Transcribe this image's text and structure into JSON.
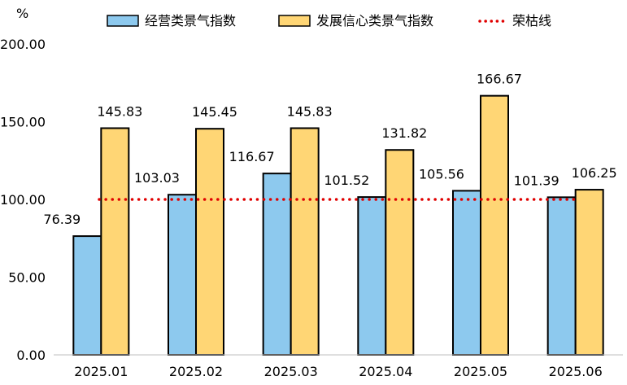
{
  "chart_data": {
    "type": "bar",
    "y_unit": "%",
    "categories": [
      "2025.01",
      "2025.02",
      "2025.03",
      "2025.04",
      "2025.05",
      "2025.06"
    ],
    "series": [
      {
        "name": "经营类景气指数",
        "values": [
          76.39,
          103.03,
          116.67,
          101.52,
          105.56,
          101.39
        ],
        "color": "#8DC9EE",
        "edge": "#000000"
      },
      {
        "name": "发展信心类景气指数",
        "values": [
          145.83,
          145.45,
          145.83,
          131.82,
          166.67,
          106.25
        ],
        "color": "#FFD675",
        "edge": "#000000"
      }
    ],
    "reference_line": {
      "name": "荣枯线",
      "value": 100,
      "color": "#E00000",
      "style": "dotted"
    },
    "ylim": [
      0,
      200
    ],
    "yticks": [
      "0.00",
      "50.00",
      "100.00",
      "150.00",
      "200.00"
    ],
    "grid": false,
    "legend_position": "top"
  }
}
